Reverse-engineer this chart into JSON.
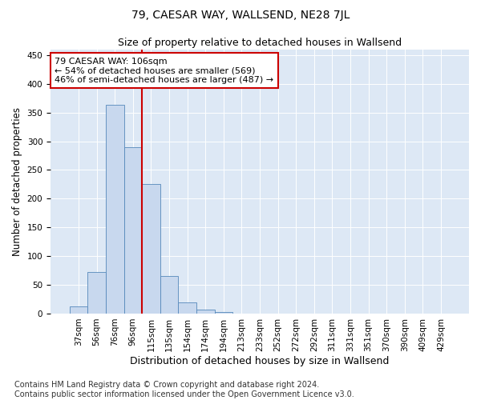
{
  "title": "79, CAESAR WAY, WALLSEND, NE28 7JL",
  "subtitle": "Size of property relative to detached houses in Wallsend",
  "xlabel": "Distribution of detached houses by size in Wallsend",
  "ylabel": "Number of detached properties",
  "bar_labels": [
    "37sqm",
    "56sqm",
    "76sqm",
    "96sqm",
    "115sqm",
    "135sqm",
    "154sqm",
    "174sqm",
    "194sqm",
    "213sqm",
    "233sqm",
    "252sqm",
    "272sqm",
    "292sqm",
    "311sqm",
    "331sqm",
    "351sqm",
    "370sqm",
    "390sqm",
    "409sqm",
    "429sqm"
  ],
  "bar_values": [
    12,
    73,
    363,
    290,
    225,
    65,
    20,
    7,
    3,
    0,
    0,
    0,
    0,
    0,
    0,
    0,
    0,
    0,
    0,
    0,
    0
  ],
  "bar_color": "#c8d8ee",
  "bar_edge_color": "#5588bb",
  "vline_color": "#cc0000",
  "vline_x": 3.5,
  "annotation_text": "79 CAESAR WAY: 106sqm\n← 54% of detached houses are smaller (569)\n46% of semi-detached houses are larger (487) →",
  "annotation_box_facecolor": "#ffffff",
  "annotation_box_edgecolor": "#cc0000",
  "ylim": [
    0,
    460
  ],
  "yticks": [
    0,
    50,
    100,
    150,
    200,
    250,
    300,
    350,
    400,
    450
  ],
  "background_color": "#dde8f5",
  "grid_color": "#ffffff",
  "footer_text": "Contains HM Land Registry data © Crown copyright and database right 2024.\nContains public sector information licensed under the Open Government Licence v3.0.",
  "title_fontsize": 10,
  "subtitle_fontsize": 9,
  "xlabel_fontsize": 9,
  "ylabel_fontsize": 8.5,
  "tick_fontsize": 7.5,
  "footer_fontsize": 7,
  "annot_fontsize": 8
}
